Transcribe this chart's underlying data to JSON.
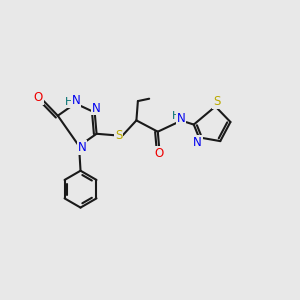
{
  "bg_color": "#e8e8e8",
  "bond_color": "#1a1a1a",
  "N_color": "#0000ee",
  "O_color": "#ee0000",
  "S_color": "#bbaa00",
  "H_color": "#007070",
  "lw": 1.5,
  "fs": 8.5,
  "xlim": [
    0,
    10
  ],
  "ylim": [
    0,
    10
  ]
}
